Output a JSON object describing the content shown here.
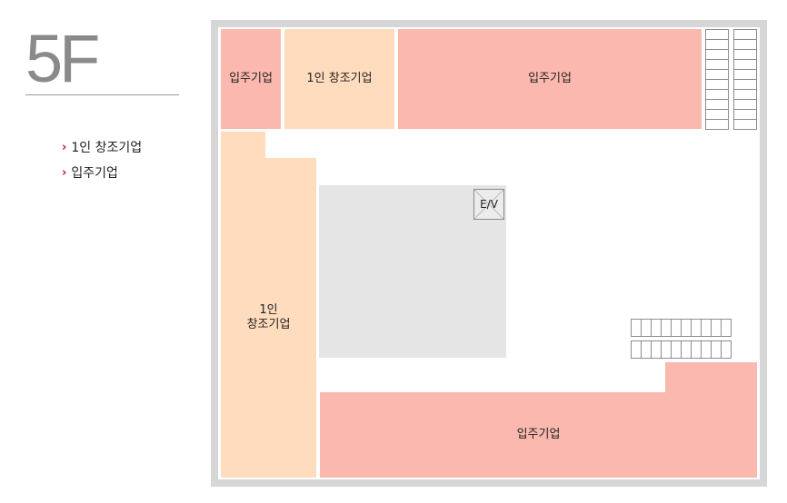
{
  "floor": {
    "title": "5F"
  },
  "legend": [
    {
      "label": "1인 창조기업"
    },
    {
      "label": "입주기업"
    }
  ],
  "plan": {
    "rooms": {
      "tenant_top_left": "입주기업",
      "solo_top": "1인 창조기업",
      "tenant_top_right": "입주기업",
      "solo_left_line1": "1인",
      "solo_left_line2": "창조기업",
      "tenant_bottom": "입주기업"
    },
    "elevator_label": "E/V"
  },
  "colors": {
    "tenant": "#fbb8ae",
    "solo_enterprise": "#ffdcbd",
    "core": "#e5e5e5",
    "frame": "#d6d6d6",
    "legend_arrow": "#c8102e"
  }
}
